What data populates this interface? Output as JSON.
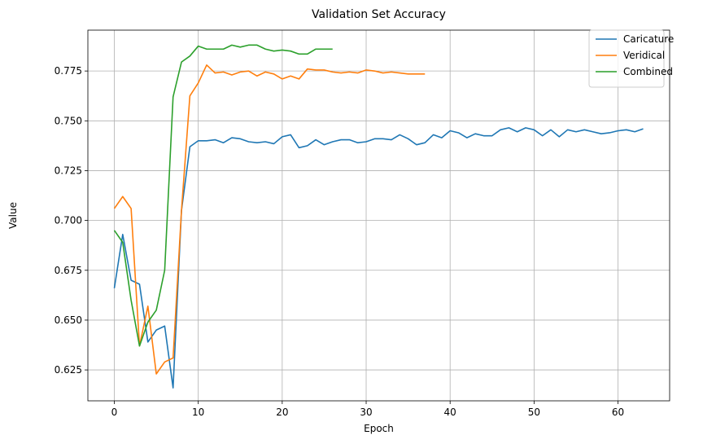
{
  "chart_data": {
    "type": "line",
    "title": "Validation Set Accuracy",
    "xlabel": "Epoch",
    "ylabel": "Value",
    "xlim": [
      -3.15,
      66.15
    ],
    "ylim": [
      0.6095,
      0.7955
    ],
    "xticks": [
      0,
      10,
      20,
      30,
      40,
      50,
      60
    ],
    "yticks": [
      0.625,
      0.65,
      0.675,
      0.7,
      0.725,
      0.75,
      0.775
    ],
    "ytick_labels": [
      "0.625",
      "0.650",
      "0.675",
      "0.700",
      "0.725",
      "0.750",
      "0.775"
    ],
    "grid": true,
    "legend_position": "top-right",
    "series": [
      {
        "name": "Caricature",
        "color": "#1f77b4",
        "y": [
          0.666,
          0.693,
          0.67,
          0.668,
          0.639,
          0.645,
          0.647,
          0.616,
          0.705,
          0.737,
          0.74,
          0.74,
          0.7405,
          0.739,
          0.7415,
          0.741,
          0.7395,
          0.739,
          0.7395,
          0.7385,
          0.742,
          0.743,
          0.7365,
          0.7375,
          0.7405,
          0.738,
          0.7395,
          0.7405,
          0.7405,
          0.739,
          0.7395,
          0.741,
          0.741,
          0.7405,
          0.743,
          0.741,
          0.738,
          0.739,
          0.743,
          0.7415,
          0.745,
          0.744,
          0.7415,
          0.7435,
          0.7425,
          0.7425,
          0.7455,
          0.7465,
          0.7445,
          0.7465,
          0.7455,
          0.7425,
          0.7455,
          0.742,
          0.7455,
          0.7445,
          0.7455,
          0.7445,
          0.7435,
          0.744,
          0.745,
          0.7455,
          0.7445,
          0.746
        ]
      },
      {
        "name": "Veridical",
        "color": "#ff7f0e",
        "y": [
          0.706,
          0.712,
          0.706,
          0.637,
          0.657,
          0.623,
          0.629,
          0.631,
          0.705,
          0.7625,
          0.769,
          0.778,
          0.774,
          0.7745,
          0.773,
          0.7745,
          0.775,
          0.7725,
          0.7745,
          0.7735,
          0.771,
          0.7725,
          0.771,
          0.776,
          0.7755,
          0.7755,
          0.7745,
          0.774,
          0.7745,
          0.774,
          0.7755,
          0.775,
          0.774,
          0.7745,
          0.774,
          0.7735,
          0.7735,
          0.7735
        ]
      },
      {
        "name": "Combined",
        "color": "#2ca02c",
        "y": [
          0.695,
          0.689,
          0.66,
          0.637,
          0.649,
          0.655,
          0.675,
          0.762,
          0.7795,
          0.7825,
          0.7875,
          0.786,
          0.786,
          0.786,
          0.788,
          0.787,
          0.788,
          0.788,
          0.786,
          0.785,
          0.7855,
          0.785,
          0.7835,
          0.7835,
          0.786,
          0.786,
          0.786
        ]
      }
    ]
  }
}
